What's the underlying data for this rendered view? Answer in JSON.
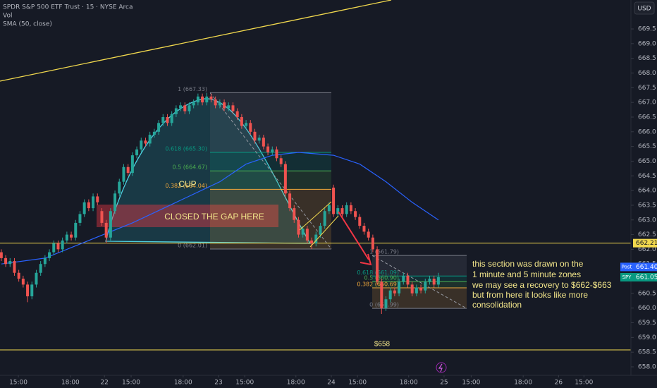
{
  "chart_data": {
    "type": "candlestick",
    "title": "SPDR S&P 500 ETF Trust · 15 · NYSE Arca",
    "indicators": [
      "Vol"
    ],
    "currency": "USD",
    "up_color": "#26a69a",
    "down_color": "#ef5350",
    "xlim": [
      -0.3,
      144.05
    ],
    "ylim": [
      657.76,
      670.485
    ],
    "xticks": [
      {
        "value": 3.9,
        "label": "15:00"
      },
      {
        "value": 15.8,
        "label": "18:00"
      },
      {
        "value": 23.6,
        "label": "22"
      },
      {
        "value": 29.7,
        "label": "15:00"
      },
      {
        "value": 41.6,
        "label": "18:00"
      },
      {
        "value": 49.7,
        "label": "23"
      },
      {
        "value": 55.7,
        "label": "15:00"
      },
      {
        "value": 67.4,
        "label": "18:00"
      },
      {
        "value": 75.5,
        "label": "24"
      },
      {
        "value": 81.5,
        "label": "15:00"
      },
      {
        "value": 93.2,
        "label": "18:00"
      },
      {
        "value": 101.3,
        "label": "25"
      },
      {
        "value": 107.5,
        "label": "15:00"
      },
      {
        "value": 119.4,
        "label": "18:00"
      },
      {
        "value": 127.5,
        "label": "26"
      },
      {
        "value": 133.3,
        "label": "15:00"
      }
    ],
    "yticks": [
      {
        "value": 658,
        "label": "658.0"
      },
      658.5,
      {
        "value": 659,
        "label": "659.0"
      },
      659.5,
      {
        "value": 660,
        "label": "660.0"
      },
      660.5,
      {
        "value": 661,
        "label": "661.0"
      },
      661.5,
      {
        "value": 662,
        "label": "662.0"
      },
      662.5,
      {
        "value": 663,
        "label": "663.0"
      },
      663.5,
      {
        "value": 664,
        "label": "664.0"
      },
      664.5,
      {
        "value": 665,
        "label": "665.0"
      },
      665.5,
      {
        "value": 666,
        "label": "666.0"
      },
      666.5,
      {
        "value": 667,
        "label": "667.0"
      },
      667.5,
      {
        "value": 668,
        "label": "668.0"
      },
      668.5,
      {
        "value": 669,
        "label": "669.0"
      },
      669.5
    ],
    "ohlc": [
      [
        661.9,
        662.0,
        661.6,
        661.7
      ],
      [
        661.7,
        661.8,
        661.4,
        661.5
      ],
      [
        661.5,
        661.7,
        661.4,
        661.6
      ],
      [
        661.6,
        661.7,
        661.1,
        661.2
      ],
      [
        661.2,
        661.3,
        660.9,
        661.0
      ],
      [
        661.0,
        661.1,
        660.7,
        660.8
      ],
      [
        660.8,
        660.9,
        660.2,
        660.4
      ],
      [
        660.4,
        660.9,
        660.3,
        660.8
      ],
      [
        660.8,
        661.3,
        660.7,
        661.2
      ],
      [
        661.2,
        661.6,
        661.1,
        661.5
      ],
      [
        661.5,
        661.8,
        661.4,
        661.7
      ],
      [
        661.7,
        662.0,
        661.6,
        661.9
      ],
      [
        661.9,
        662.3,
        661.8,
        662.2
      ],
      [
        662.2,
        662.3,
        661.9,
        662.0
      ],
      [
        662.0,
        662.4,
        661.9,
        662.3
      ],
      [
        662.3,
        662.6,
        662.2,
        662.5
      ],
      [
        662.5,
        662.6,
        662.3,
        662.4
      ],
      [
        662.4,
        663.0,
        662.3,
        662.9
      ],
      [
        662.9,
        663.3,
        662.8,
        663.2
      ],
      [
        663.2,
        663.7,
        663.1,
        663.6
      ],
      [
        663.6,
        663.7,
        663.3,
        663.4
      ],
      [
        663.4,
        663.9,
        663.3,
        663.8
      ],
      [
        663.8,
        663.9,
        663.5,
        663.6
      ],
      [
        663.3,
        663.4,
        662.8,
        662.9
      ],
      [
        662.9,
        663.0,
        662.2,
        662.4
      ],
      [
        662.4,
        663.4,
        662.3,
        663.3
      ],
      [
        663.3,
        664.0,
        663.2,
        663.9
      ],
      [
        663.9,
        664.4,
        663.8,
        664.3
      ],
      [
        664.3,
        664.9,
        664.2,
        664.8
      ],
      [
        664.8,
        664.9,
        664.5,
        664.6
      ],
      [
        664.6,
        665.3,
        664.5,
        665.2
      ],
      [
        665.2,
        665.5,
        665.1,
        665.4
      ],
      [
        665.4,
        665.8,
        665.3,
        665.7
      ],
      [
        665.7,
        665.8,
        665.5,
        665.6
      ],
      [
        665.6,
        666.0,
        665.5,
        665.9
      ],
      [
        665.9,
        666.1,
        665.8,
        666.0
      ],
      [
        666.0,
        666.4,
        665.9,
        666.3
      ],
      [
        666.3,
        666.6,
        666.2,
        666.5
      ],
      [
        666.5,
        666.6,
        666.2,
        666.3
      ],
      [
        666.3,
        666.7,
        666.2,
        666.6
      ],
      [
        666.6,
        666.9,
        666.5,
        666.8
      ],
      [
        666.8,
        667.0,
        666.7,
        666.9
      ],
      [
        666.9,
        667.0,
        666.6,
        666.7
      ],
      [
        666.7,
        667.0,
        666.6,
        666.9
      ],
      [
        666.9,
        667.1,
        666.8,
        667.0
      ],
      [
        667.0,
        667.3,
        666.9,
        667.2
      ],
      [
        667.2,
        667.3,
        666.9,
        667.0
      ],
      [
        667.0,
        667.33,
        666.9,
        667.2
      ],
      [
        667.2,
        667.3,
        667.0,
        667.1
      ],
      [
        667.1,
        667.2,
        666.8,
        666.9
      ],
      [
        666.9,
        667.1,
        666.8,
        667.0
      ],
      [
        667.0,
        667.1,
        666.7,
        666.8
      ],
      [
        666.8,
        667.0,
        666.7,
        666.9
      ],
      [
        666.9,
        667.0,
        666.6,
        666.7
      ],
      [
        666.7,
        666.8,
        666.4,
        666.5
      ],
      [
        666.5,
        666.6,
        666.1,
        666.2
      ],
      [
        666.2,
        666.4,
        666.1,
        666.3
      ],
      [
        666.3,
        666.4,
        665.9,
        666.0
      ],
      [
        666.0,
        666.1,
        665.6,
        665.7
      ],
      [
        665.7,
        665.9,
        665.6,
        665.8
      ],
      [
        665.8,
        665.9,
        665.4,
        665.5
      ],
      [
        665.5,
        665.6,
        665.2,
        665.3
      ],
      [
        665.3,
        665.5,
        665.2,
        665.4
      ],
      [
        665.4,
        665.5,
        665.0,
        665.1
      ],
      [
        665.1,
        665.2,
        664.8,
        664.9
      ],
      [
        664.9,
        665.0,
        663.8,
        663.9
      ],
      [
        663.9,
        664.0,
        663.3,
        663.4
      ],
      [
        663.4,
        663.5,
        662.9,
        663.0
      ],
      [
        663.0,
        663.1,
        662.4,
        662.5
      ],
      [
        662.5,
        662.8,
        662.4,
        662.7
      ],
      [
        662.7,
        662.8,
        662.2,
        662.3
      ],
      [
        662.3,
        662.4,
        662.01,
        662.2
      ],
      [
        662.2,
        662.6,
        662.1,
        662.5
      ],
      [
        662.5,
        662.9,
        662.4,
        662.8
      ],
      [
        662.8,
        663.4,
        662.7,
        663.3
      ],
      [
        663.3,
        663.6,
        663.2,
        663.5
      ],
      [
        664.1,
        664.2,
        663.1,
        663.2
      ],
      [
        663.2,
        663.5,
        663.1,
        663.4
      ],
      [
        663.4,
        663.5,
        663.1,
        663.2
      ],
      [
        663.2,
        663.6,
        663.1,
        663.5
      ],
      [
        663.5,
        663.6,
        663.2,
        663.3
      ],
      [
        663.3,
        663.4,
        663.0,
        663.1
      ],
      [
        663.1,
        663.2,
        662.7,
        662.8
      ],
      [
        662.8,
        662.9,
        662.5,
        662.6
      ],
      [
        662.6,
        662.7,
        662.3,
        662.4
      ],
      [
        662.4,
        662.5,
        661.9,
        662.0
      ],
      [
        662.0,
        662.1,
        660.8,
        660.9
      ],
      [
        660.9,
        661.0,
        659.8,
        660.0
      ],
      [
        660.0,
        660.4,
        659.9,
        660.3
      ],
      [
        660.3,
        660.7,
        660.2,
        660.6
      ],
      [
        660.6,
        660.7,
        660.4,
        660.5
      ],
      [
        660.5,
        661.0,
        660.4,
        660.9
      ],
      [
        660.9,
        661.2,
        660.8,
        661.1
      ],
      [
        661.1,
        661.2,
        660.7,
        660.8
      ],
      [
        660.8,
        660.9,
        660.4,
        660.5
      ],
      [
        660.5,
        660.8,
        660.4,
        660.7
      ],
      [
        660.7,
        660.8,
        660.5,
        660.6
      ],
      [
        660.6,
        661.0,
        660.5,
        660.9
      ],
      [
        660.9,
        661.1,
        660.8,
        661.0
      ],
      [
        661.0,
        661.1,
        660.7,
        660.8
      ],
      [
        660.8,
        661.2,
        660.7,
        661.05
      ]
    ],
    "series": [
      {
        "name": "SMA (50, close)",
        "color": "#2962ff",
        "x": [
          0,
          10,
          20,
          30,
          40,
          50,
          56,
          62,
          68,
          76,
          82,
          88,
          94,
          100
        ],
        "values": [
          661.5,
          661.7,
          662.3,
          662.9,
          663.6,
          664.3,
          664.9,
          665.2,
          665.3,
          665.2,
          664.9,
          664.3,
          663.6,
          663.0
        ]
      }
    ],
    "last_line": 662.21,
    "price_markers": [
      {
        "name": "Post",
        "value": 661.4,
        "label": "661.40",
        "color": "#2962ff"
      },
      {
        "name": "SPY",
        "value": 661.05,
        "color": "#089981"
      }
    ],
    "fib": [
      {
        "levels": [
          {
            "value": 667.33,
            "label": "1 (667.33)",
            "color": "#787b86"
          },
          {
            "value": 665.3,
            "label": "0.618 (665.30)",
            "color": "#089981"
          },
          {
            "value": 664.67,
            "label": "0.5 (664.67)",
            "color": "#4caf50"
          },
          {
            "value": 664.04,
            "label": "0.382 (664.04)",
            "color": "#f2a93b"
          },
          {
            "value": 662.01,
            "label": "0 (662.01)",
            "color": "#787b86"
          }
        ]
      },
      {
        "levels": [
          {
            "value": 661.79,
            "label": "1 (661.79)",
            "color": "#787b86"
          },
          {
            "value": 661.09,
            "label": "0.618 (661.09)",
            "color": "#089981"
          },
          {
            "value": 660.9,
            "label": "0.5 (660.90)",
            "color": "#4caf50"
          },
          {
            "value": 660.69,
            "label": "0.382 (660.69)",
            "color": "#f2a93b"
          },
          {
            "value": 659.99,
            "label": "0 (659.99)",
            "color": "#787b86"
          }
        ]
      }
    ],
    "annotations": {
      "cup": "CUP",
      "gap": "CLOSED THE GAP HERE",
      "support": "$658",
      "note": [
        "this section was drawn on the",
        " 1 minute and 5 minute zones",
        "we may see a recovery to $662-$663",
        "but from here it looks like more",
        "consolidation"
      ]
    }
  }
}
